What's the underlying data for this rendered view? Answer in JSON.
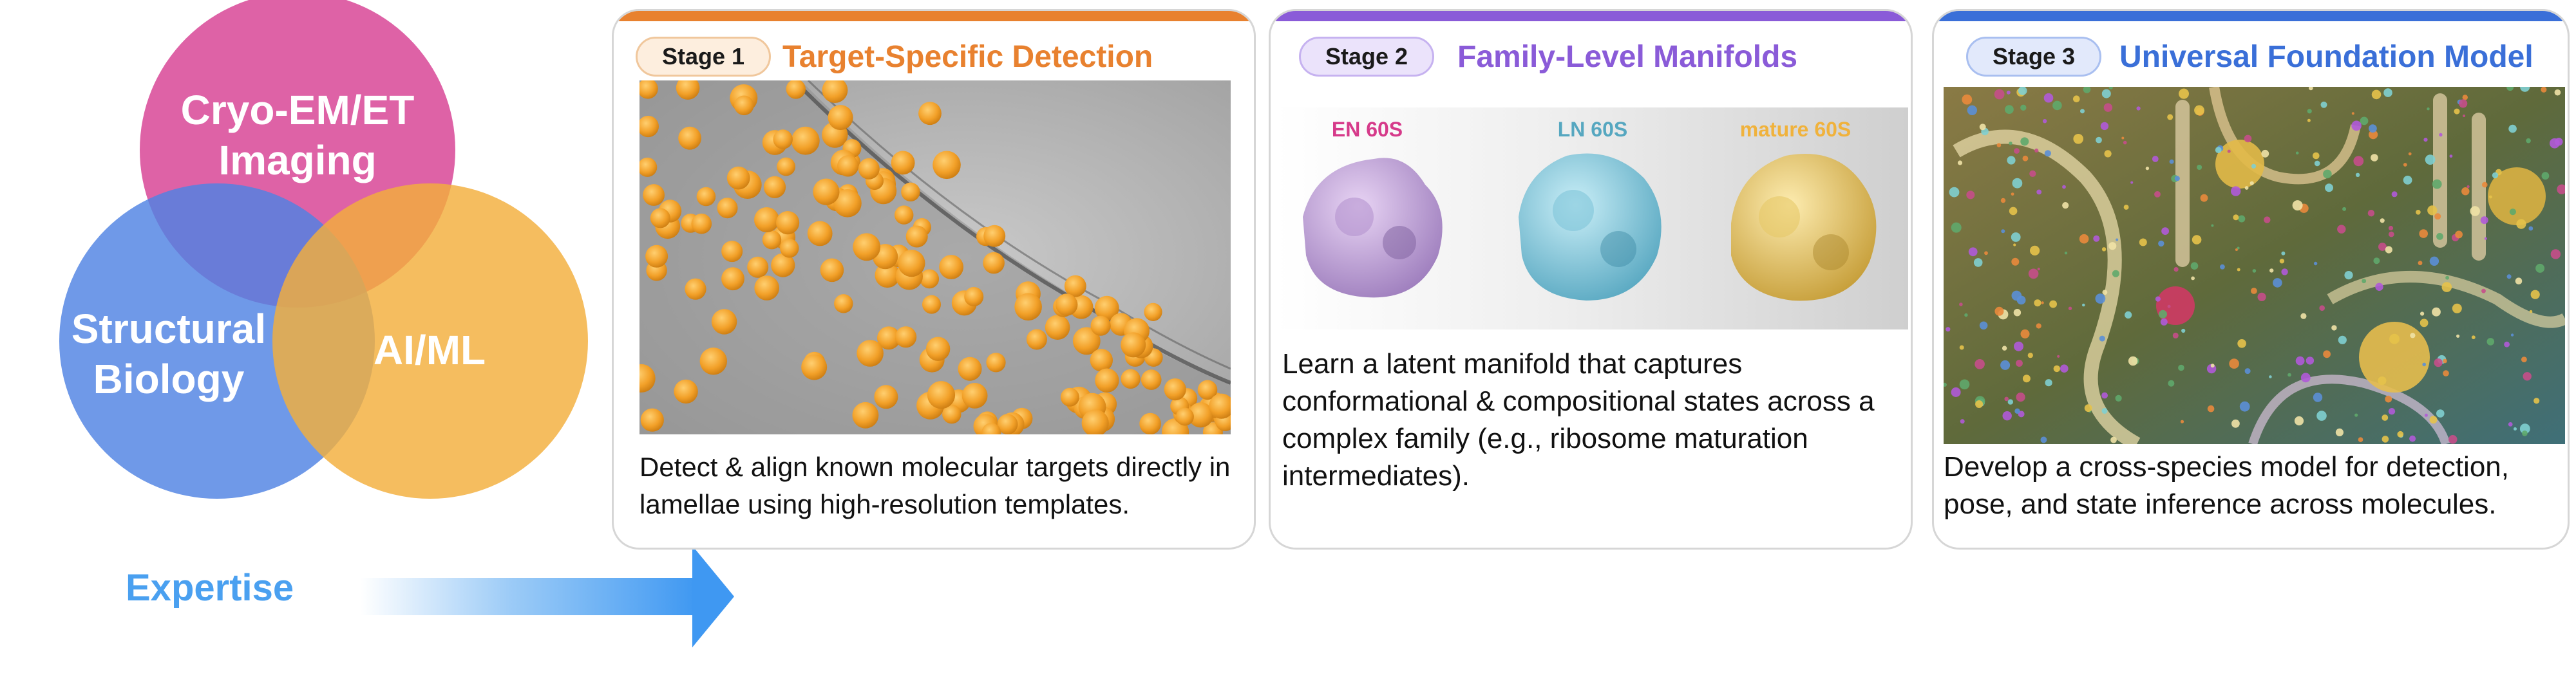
{
  "venn": {
    "circles": [
      {
        "label_lines": [
          "Cryo-EM/ET",
          "Imaging"
        ],
        "color": "#d94c9a"
      },
      {
        "label_lines": [
          "Structural",
          "Biology"
        ],
        "color": "#4f82e3"
      },
      {
        "label_lines": [
          "AI/ML"
        ],
        "color": "#f3ae3c"
      }
    ]
  },
  "expertise": {
    "label": "Expertise",
    "color": "#4aa0f0"
  },
  "stages": [
    {
      "badge": "Stage 1",
      "title": "Target-Specific Detection",
      "accent": "#e8812f",
      "badge_fill": "#fdeede",
      "text": "Detect & align known molecular targets directly in lamellae using high-resolution templates."
    },
    {
      "badge": "Stage 2",
      "title": "Family-Level Manifolds",
      "accent": "#8a5bd8",
      "badge_fill": "#ebe3fb",
      "state_labels": [
        {
          "text": "EN 60S",
          "color": "#d63a8a"
        },
        {
          "text": "LN 60S",
          "color": "#56a7c0"
        },
        {
          "text": "mature 60S",
          "color": "#f0b23c"
        }
      ],
      "text": "Learn a latent manifold that captures conformational & compositional states across a complex family (e.g., ribosome maturation intermediates)."
    },
    {
      "badge": "Stage 3",
      "title": "Universal Foundation Model",
      "accent": "#3a6fd8",
      "badge_fill": "#e2e9fb",
      "text": "Develop a cross-species model for detection, pose, and state inference across molecules."
    }
  ]
}
